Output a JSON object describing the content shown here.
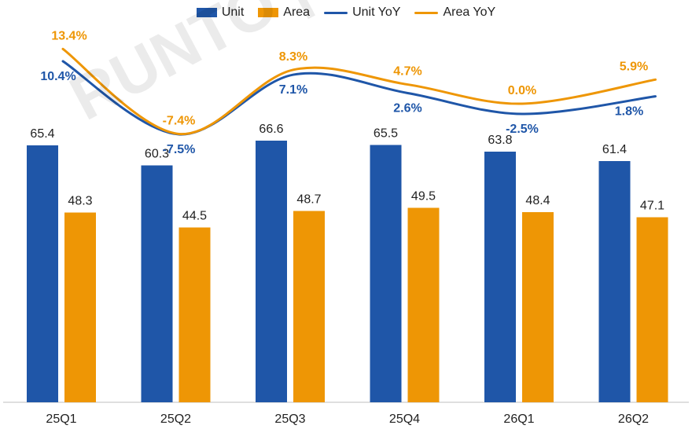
{
  "watermark": "RUNTO | 洛图科技",
  "colors": {
    "unit": "#1f56a8",
    "area": "#ee9605",
    "axis": "#bfbfbf",
    "text": "#222222"
  },
  "legend": [
    {
      "key": "unit_bar",
      "label": "Unit",
      "kind": "bar",
      "color": "#1f56a8"
    },
    {
      "key": "area_bar",
      "label": "Area",
      "kind": "bar",
      "color": "#ee9605"
    },
    {
      "key": "unit_yoy",
      "label": "Unit YoY",
      "kind": "line",
      "color": "#1f56a8"
    },
    {
      "key": "area_yoy",
      "label": "Area YoY",
      "kind": "line",
      "color": "#ee9605"
    }
  ],
  "chart_data": {
    "type": "bar",
    "categories": [
      "25Q1",
      "25Q2",
      "25Q3",
      "25Q4",
      "26Q1",
      "26Q2"
    ],
    "series": [
      {
        "name": "Unit",
        "values": [
          65.4,
          60.3,
          66.6,
          65.5,
          63.8,
          61.4
        ],
        "labels": [
          "65.4",
          "60.3",
          "66.6",
          "65.5",
          "63.8",
          "61.4"
        ]
      },
      {
        "name": "Area",
        "values": [
          48.3,
          44.5,
          48.7,
          49.5,
          48.4,
          47.1
        ],
        "labels": [
          "48.3",
          "44.5",
          "48.7",
          "49.5",
          "48.4",
          "47.1"
        ]
      }
    ],
    "line_series": [
      {
        "name": "Unit YoY",
        "values": [
          10.4,
          -7.5,
          7.1,
          2.6,
          -2.5,
          1.8
        ],
        "labels": [
          "10.4%",
          "-7.5%",
          "7.1%",
          "2.6%",
          "-2.5%",
          "1.8%"
        ]
      },
      {
        "name": "Area YoY",
        "values": [
          13.4,
          -7.4,
          8.3,
          4.7,
          0.0,
          5.9
        ],
        "labels": [
          "13.4%",
          "-7.4%",
          "8.3%",
          "4.7%",
          "0.0%",
          "5.9%"
        ]
      }
    ],
    "ylim_bars": [
      0,
      100
    ],
    "ylim_lines": [
      -15,
      20
    ],
    "grid": false,
    "legend_position": "top-center"
  }
}
